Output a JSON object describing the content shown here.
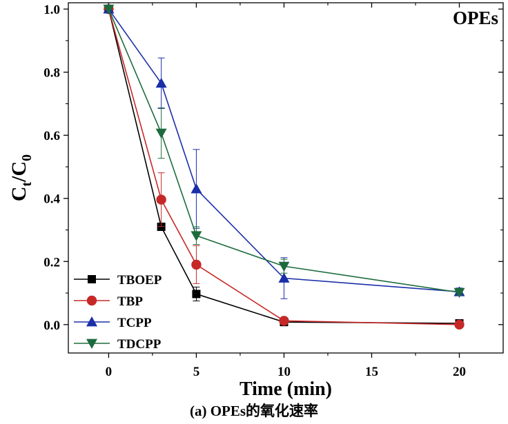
{
  "chart_data": {
    "type": "line",
    "annotation": "OPEs",
    "xlabel": "Time (min)",
    "ylabel_main": "C",
    "ylabel_sub1": "t",
    "ylabel_sep": "/C",
    "ylabel_sub2": "0",
    "xlim": [
      -2.3,
      22.5
    ],
    "ylim": [
      -0.09,
      1.02
    ],
    "xticks": [
      0,
      5,
      10,
      15,
      20
    ],
    "yticks": [
      0.0,
      0.2,
      0.4,
      0.6,
      0.8,
      1.0
    ],
    "ytick_labels": [
      "0.0",
      "0.2",
      "0.4",
      "0.6",
      "0.8",
      "1.0"
    ],
    "legend_position": "bottom-left",
    "grid": false,
    "series": [
      {
        "name": "TBOEP",
        "color": "#000000",
        "marker": "square",
        "x": [
          0,
          3,
          5,
          10,
          20
        ],
        "y": [
          1.0,
          0.31,
          0.097,
          0.008,
          0.004
        ],
        "err": [
          0,
          0,
          0.022,
          0,
          0
        ]
      },
      {
        "name": "TBP",
        "color": "#c62828",
        "marker": "circle",
        "x": [
          0,
          3,
          5,
          10,
          20
        ],
        "y": [
          1.0,
          0.396,
          0.19,
          0.012,
          0.0
        ],
        "err": [
          0,
          0.085,
          0.06,
          0,
          0
        ]
      },
      {
        "name": "TCPP",
        "color": "#1a2ea8",
        "marker": "triangle-up",
        "x": [
          0,
          3,
          5,
          10,
          20
        ],
        "y": [
          1.0,
          0.765,
          0.43,
          0.147,
          0.104
        ],
        "err": [
          0,
          0.08,
          0.125,
          0.065,
          0.012
        ]
      },
      {
        "name": "TDCPP",
        "color": "#1d6b3d",
        "marker": "triangle-down",
        "x": [
          0,
          3,
          5,
          10,
          20
        ],
        "y": [
          1.0,
          0.607,
          0.282,
          0.185,
          0.102
        ],
        "err": [
          0,
          0.08,
          0.028,
          0.022,
          0.008
        ]
      }
    ]
  },
  "caption": "(a) OPEs的氧化速率"
}
